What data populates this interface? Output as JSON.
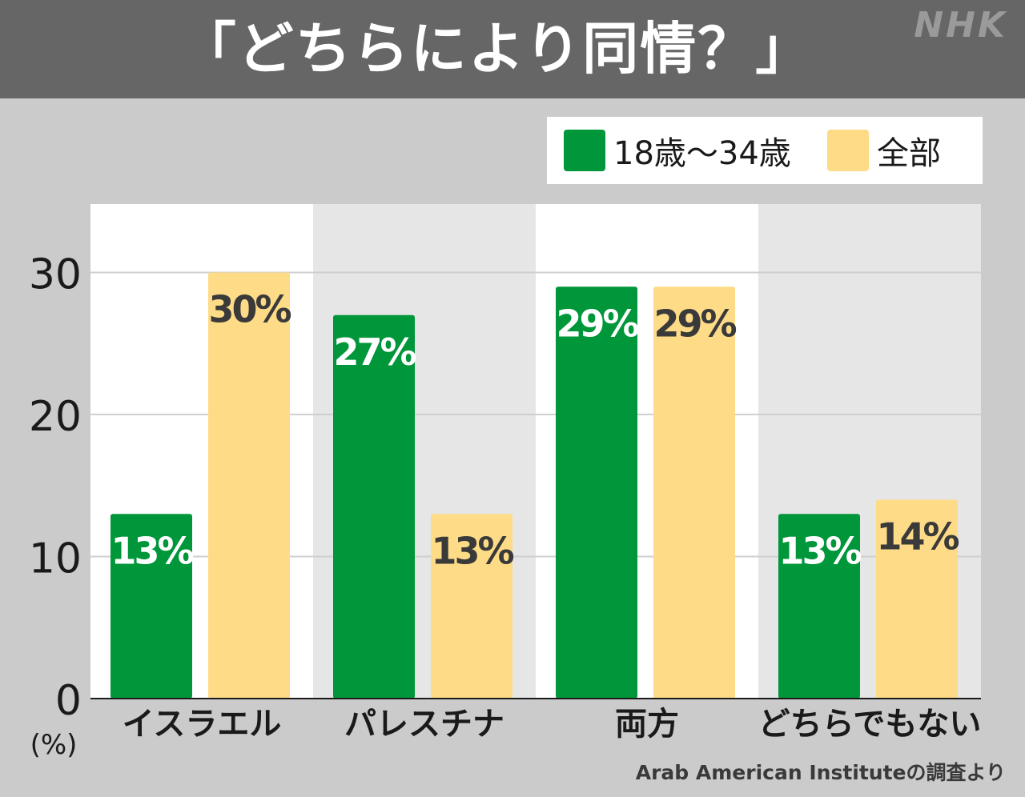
{
  "header": {
    "title": "「どちらにより同情？」",
    "logo": "NHK"
  },
  "colors": {
    "young": "#00963a",
    "all": "#fedb86",
    "header_bg": "#666666"
  },
  "chart_data": {
    "type": "bar",
    "title": "「どちらにより同情？」",
    "categories": [
      "イスラエル",
      "パレスチナ",
      "両方",
      "どちらでもない"
    ],
    "series": [
      {
        "name": "18歳〜34歳",
        "values": [
          13,
          27,
          29,
          13
        ],
        "labels": [
          "13%",
          "27%",
          "29%",
          "13%"
        ]
      },
      {
        "name": "全部",
        "values": [
          30,
          13,
          29,
          14
        ],
        "labels": [
          "30%",
          "13%",
          "29%",
          "14%"
        ]
      }
    ],
    "ylim": [
      0,
      35
    ],
    "yticks": [
      0,
      10,
      20,
      30
    ],
    "ylabel": "(%)",
    "xlabel": "",
    "grid": true,
    "legend": "top-right"
  },
  "source": "Arab American Instituteの調査より"
}
